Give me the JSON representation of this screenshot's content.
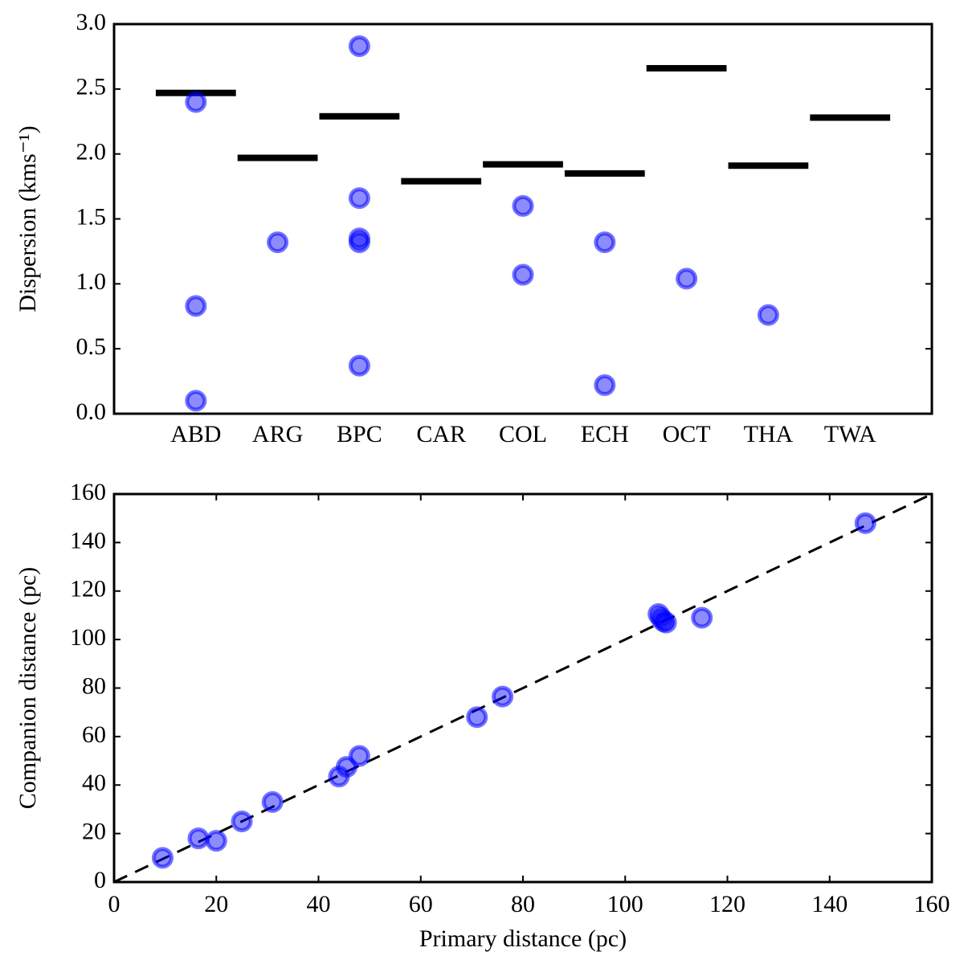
{
  "chart_data": [
    {
      "type": "category_scatter",
      "ylabel": "Dispersion (kms⁻¹)",
      "categories": [
        "ABD",
        "ARG",
        "BPC",
        "CAR",
        "COL",
        "ECH",
        "OCT",
        "THA",
        "TWA"
      ],
      "levels": [
        2.47,
        1.97,
        2.29,
        1.79,
        1.92,
        1.85,
        2.66,
        1.91,
        2.28
      ],
      "level_color": "#000000",
      "points": {
        "x": [
          "ABD",
          "ABD",
          "ABD",
          "ARG",
          "BPC",
          "BPC",
          "BPC",
          "BPC",
          "BPC",
          "COL",
          "COL",
          "ECH",
          "ECH",
          "OCT",
          "THA"
        ],
        "values": [
          2.4,
          0.83,
          0.1,
          1.32,
          2.83,
          1.66,
          1.35,
          1.32,
          0.37,
          1.6,
          1.07,
          1.32,
          0.22,
          1.04,
          0.76
        ],
        "color": "#0000ff"
      },
      "ylim": [
        0,
        3
      ],
      "yticks": [
        {
          "value": 0,
          "label": "0.0"
        },
        {
          "value": 0.5,
          "label": "0.5"
        },
        {
          "value": 1,
          "label": "1.0"
        },
        {
          "value": 1.5,
          "label": "1.5"
        },
        {
          "value": 2,
          "label": "2.0"
        },
        {
          "value": 2.5,
          "label": "2.5"
        },
        {
          "value": 3,
          "label": "3.0"
        }
      ]
    },
    {
      "type": "scatter",
      "xlabel": "Primary distance (pc)",
      "ylabel": "Companion distance (pc)",
      "x": [
        9.5,
        16.5,
        20,
        25,
        31,
        44,
        45.5,
        48,
        71,
        76,
        106.5,
        107,
        107.5,
        108,
        115,
        147
      ],
      "values": [
        10,
        18,
        17,
        25,
        33,
        43.5,
        47.5,
        52,
        68,
        76.5,
        110.5,
        109,
        107.5,
        107,
        109,
        148
      ],
      "color": "#0000ff",
      "reference_line": {
        "x": [
          0,
          160
        ],
        "y": [
          0,
          160
        ],
        "color": "#000000"
      },
      "xlim": [
        0,
        160
      ],
      "ylim": [
        0,
        160
      ],
      "xticks": [
        0,
        20,
        40,
        60,
        80,
        100,
        120,
        140,
        160
      ],
      "yticks": [
        0,
        20,
        40,
        60,
        80,
        100,
        120,
        140,
        160
      ]
    }
  ]
}
